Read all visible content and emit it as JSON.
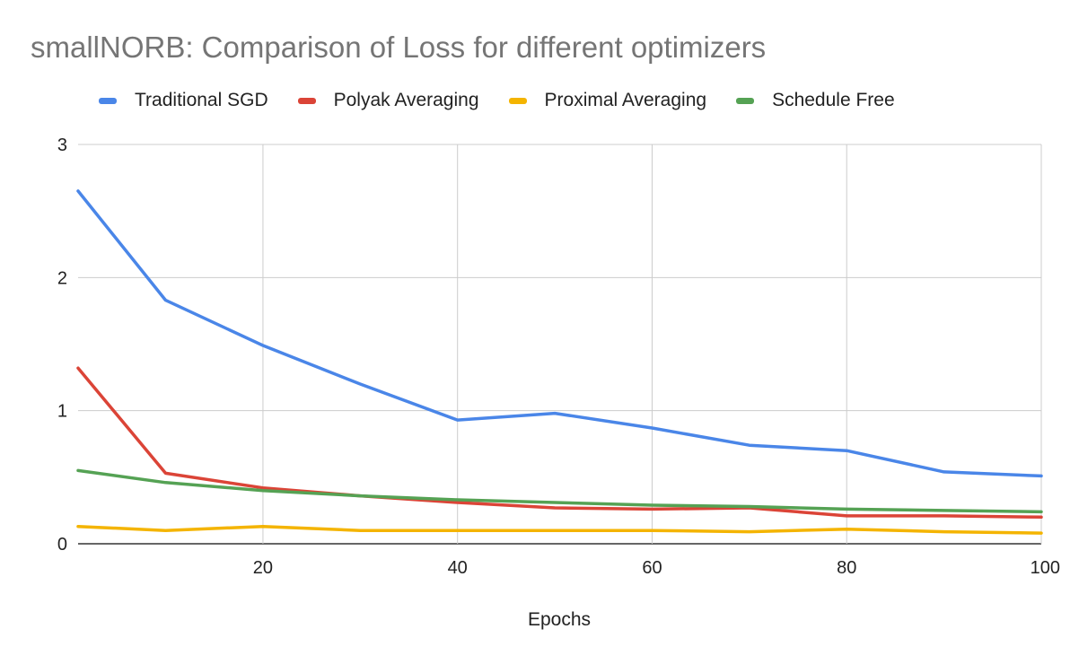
{
  "chart_data": {
    "type": "line",
    "title": "smallNORB: Comparison of Loss for different optimizers",
    "xlabel": "Epochs",
    "ylabel": "",
    "xlim": [
      1,
      100
    ],
    "ylim": [
      0,
      3
    ],
    "xticks": [
      20,
      40,
      60,
      80,
      100
    ],
    "yticks": [
      0,
      1,
      2,
      3
    ],
    "grid": true,
    "legend_position": "top",
    "x": [
      1,
      10,
      20,
      30,
      40,
      50,
      60,
      70,
      80,
      90,
      100
    ],
    "series": [
      {
        "name": "Traditional SGD",
        "color": "#4a86e8",
        "values": [
          2.65,
          1.83,
          1.49,
          1.2,
          0.93,
          0.98,
          0.87,
          0.74,
          0.7,
          0.54,
          0.51
        ]
      },
      {
        "name": "Polyak Averaging",
        "color": "#db4437",
        "values": [
          1.32,
          0.53,
          0.42,
          0.36,
          0.31,
          0.27,
          0.26,
          0.27,
          0.21,
          0.21,
          0.2
        ]
      },
      {
        "name": "Proximal Averaging",
        "color": "#f4b400",
        "values": [
          0.13,
          0.1,
          0.13,
          0.1,
          0.1,
          0.1,
          0.1,
          0.09,
          0.11,
          0.09,
          0.08
        ]
      },
      {
        "name": "Schedule Free",
        "color": "#55a254",
        "values": [
          0.55,
          0.46,
          0.4,
          0.36,
          0.33,
          0.31,
          0.29,
          0.28,
          0.26,
          0.25,
          0.24
        ]
      }
    ]
  },
  "colors": {
    "title": "#757575",
    "grid": "#cccccc",
    "text": "#222222"
  }
}
